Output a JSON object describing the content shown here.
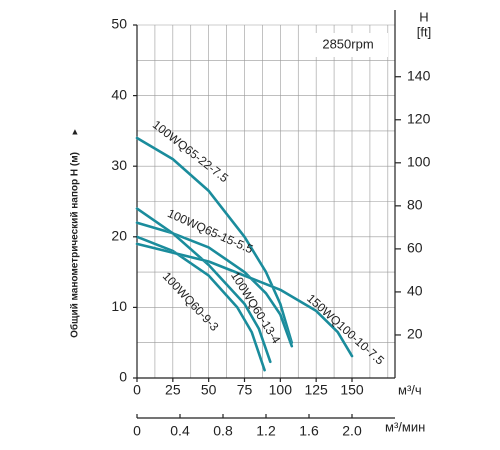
{
  "chart_data": {
    "type": "line",
    "annotation": "2850rpm",
    "y_label": "Общий манометрический напор H (м)",
    "y_arrow": "▲",
    "y2_label": "H",
    "y2_unit": "[ft]",
    "x_unit": "м³/ч",
    "x2_unit": "м³/мин",
    "xlim": [
      0,
      180
    ],
    "xticks": [
      0,
      25,
      50,
      75,
      100,
      125,
      150
    ],
    "x2lim": [
      0,
      2.4
    ],
    "x2ticks": [
      0,
      0.4,
      0.8,
      1.2,
      1.6,
      {
        "value": 2,
        "label": "2.0"
      }
    ],
    "ylim": [
      0,
      50
    ],
    "yticks": [
      0,
      10,
      20,
      30,
      40,
      50
    ],
    "y2lim": [
      0,
      164.04
    ],
    "y2ticks": [
      20,
      40,
      60,
      80,
      100,
      120,
      140
    ],
    "grid": true,
    "series": [
      {
        "name": "100WQ65-22-7.5",
        "color": "#1a8c9c",
        "x": [
          0,
          25,
          50,
          75,
          90,
          100,
          108
        ],
        "values": [
          34,
          31,
          26.5,
          20,
          15,
          10.5,
          5
        ]
      },
      {
        "name": "100WQ65-15-5.5",
        "color": "#1a8c9c",
        "x": [
          0,
          25,
          50,
          75,
          90,
          100,
          108
        ],
        "values": [
          22,
          20.5,
          18.5,
          15,
          12,
          9,
          4.5
        ]
      },
      {
        "name": "100WQ60-13-4",
        "color": "#1a8c9c",
        "x": [
          0,
          25,
          50,
          75,
          85,
          93
        ],
        "values": [
          24,
          20.5,
          16,
          10.5,
          7,
          2.3
        ]
      },
      {
        "name": "100WQ60-9-3",
        "color": "#1a8c9c",
        "x": [
          0,
          25,
          50,
          70,
          80,
          89
        ],
        "values": [
          20,
          18,
          14.5,
          10,
          6.5,
          1.1
        ]
      },
      {
        "name": "150WQ100-10-7.5",
        "color": "#1a8c9c",
        "x": [
          0,
          50,
          100,
          125,
          140,
          150
        ],
        "values": [
          19,
          16.5,
          12.5,
          9.5,
          6.5,
          3.1
        ]
      }
    ]
  }
}
